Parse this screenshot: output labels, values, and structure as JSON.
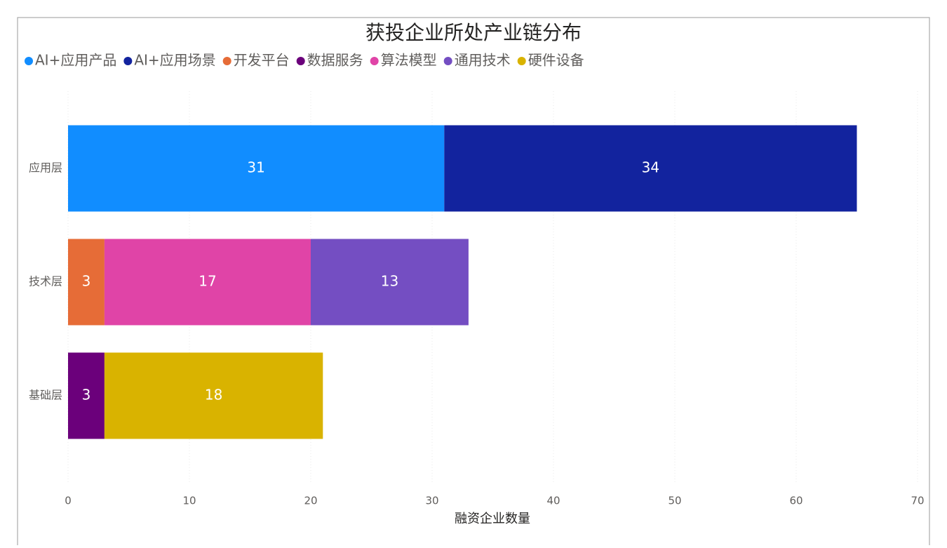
{
  "chart_data": {
    "type": "stacked-bar-horizontal",
    "title": "获投企业所处产业链分布",
    "categories": [
      "应用层",
      "技术层",
      "基础层"
    ],
    "series": [
      {
        "name": "AI+应用产品",
        "color": "#118DFF",
        "values": [
          31,
          null,
          null
        ]
      },
      {
        "name": "AI+应用场景",
        "color": "#12239E",
        "values": [
          34,
          null,
          null
        ]
      },
      {
        "name": "开发平台",
        "color": "#E66C37",
        "values": [
          null,
          3,
          null
        ]
      },
      {
        "name": "数据服务",
        "color": "#6B007B",
        "values": [
          null,
          null,
          3
        ]
      },
      {
        "name": "算法模型",
        "color": "#E044A7",
        "values": [
          null,
          17,
          null
        ]
      },
      {
        "name": "通用技术",
        "color": "#744EC2",
        "values": [
          null,
          13,
          null
        ]
      },
      {
        "name": "硬件设备",
        "color": "#D9B300",
        "values": [
          null,
          null,
          18
        ]
      }
    ],
    "x_label": "融资企业数量",
    "xlim": [
      0,
      70
    ],
    "xticks": [
      0,
      10,
      20,
      30,
      40,
      50,
      60,
      70
    ],
    "grid": true
  }
}
